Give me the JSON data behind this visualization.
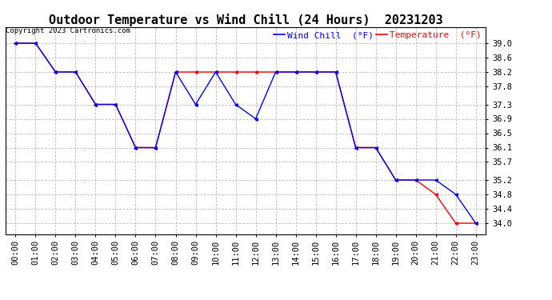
{
  "title": "Outdoor Temperature vs Wind Chill (24 Hours)  20231203",
  "copyright": "Copyright 2023 Cartronics.com",
  "legend_wind_chill": "Wind Chill  (°F)",
  "legend_temperature": "Temperature  (°F)",
  "x_labels": [
    "00:00",
    "01:00",
    "02:00",
    "03:00",
    "04:00",
    "05:00",
    "06:00",
    "07:00",
    "08:00",
    "09:00",
    "10:00",
    "11:00",
    "12:00",
    "13:00",
    "14:00",
    "15:00",
    "16:00",
    "17:00",
    "18:00",
    "19:00",
    "20:00",
    "21:00",
    "22:00",
    "23:00"
  ],
  "temperature": [
    39.0,
    39.0,
    38.2,
    38.2,
    37.3,
    37.3,
    36.1,
    36.1,
    38.2,
    38.2,
    38.2,
    38.2,
    38.2,
    38.2,
    38.2,
    38.2,
    38.2,
    36.1,
    36.1,
    35.2,
    35.2,
    34.8,
    34.0,
    34.0
  ],
  "wind_chill": [
    39.0,
    39.0,
    38.2,
    38.2,
    37.3,
    37.3,
    36.1,
    36.1,
    38.2,
    37.3,
    38.2,
    37.3,
    36.9,
    38.2,
    38.2,
    38.2,
    38.2,
    36.1,
    36.1,
    35.2,
    35.2,
    35.2,
    34.8,
    34.0
  ],
  "temp_color": "#ff0000",
  "wind_chill_color": "#0000ff",
  "ylim_min": 33.7,
  "ylim_max": 39.45,
  "yticks": [
    34.0,
    34.4,
    34.8,
    35.2,
    35.7,
    36.1,
    36.5,
    36.9,
    37.3,
    37.8,
    38.2,
    38.6,
    39.0
  ],
  "background_color": "#ffffff",
  "grid_color": "#bbbbbb",
  "title_fontsize": 11,
  "tick_fontsize": 7.5,
  "legend_fontsize": 8,
  "copyright_fontsize": 6.5
}
